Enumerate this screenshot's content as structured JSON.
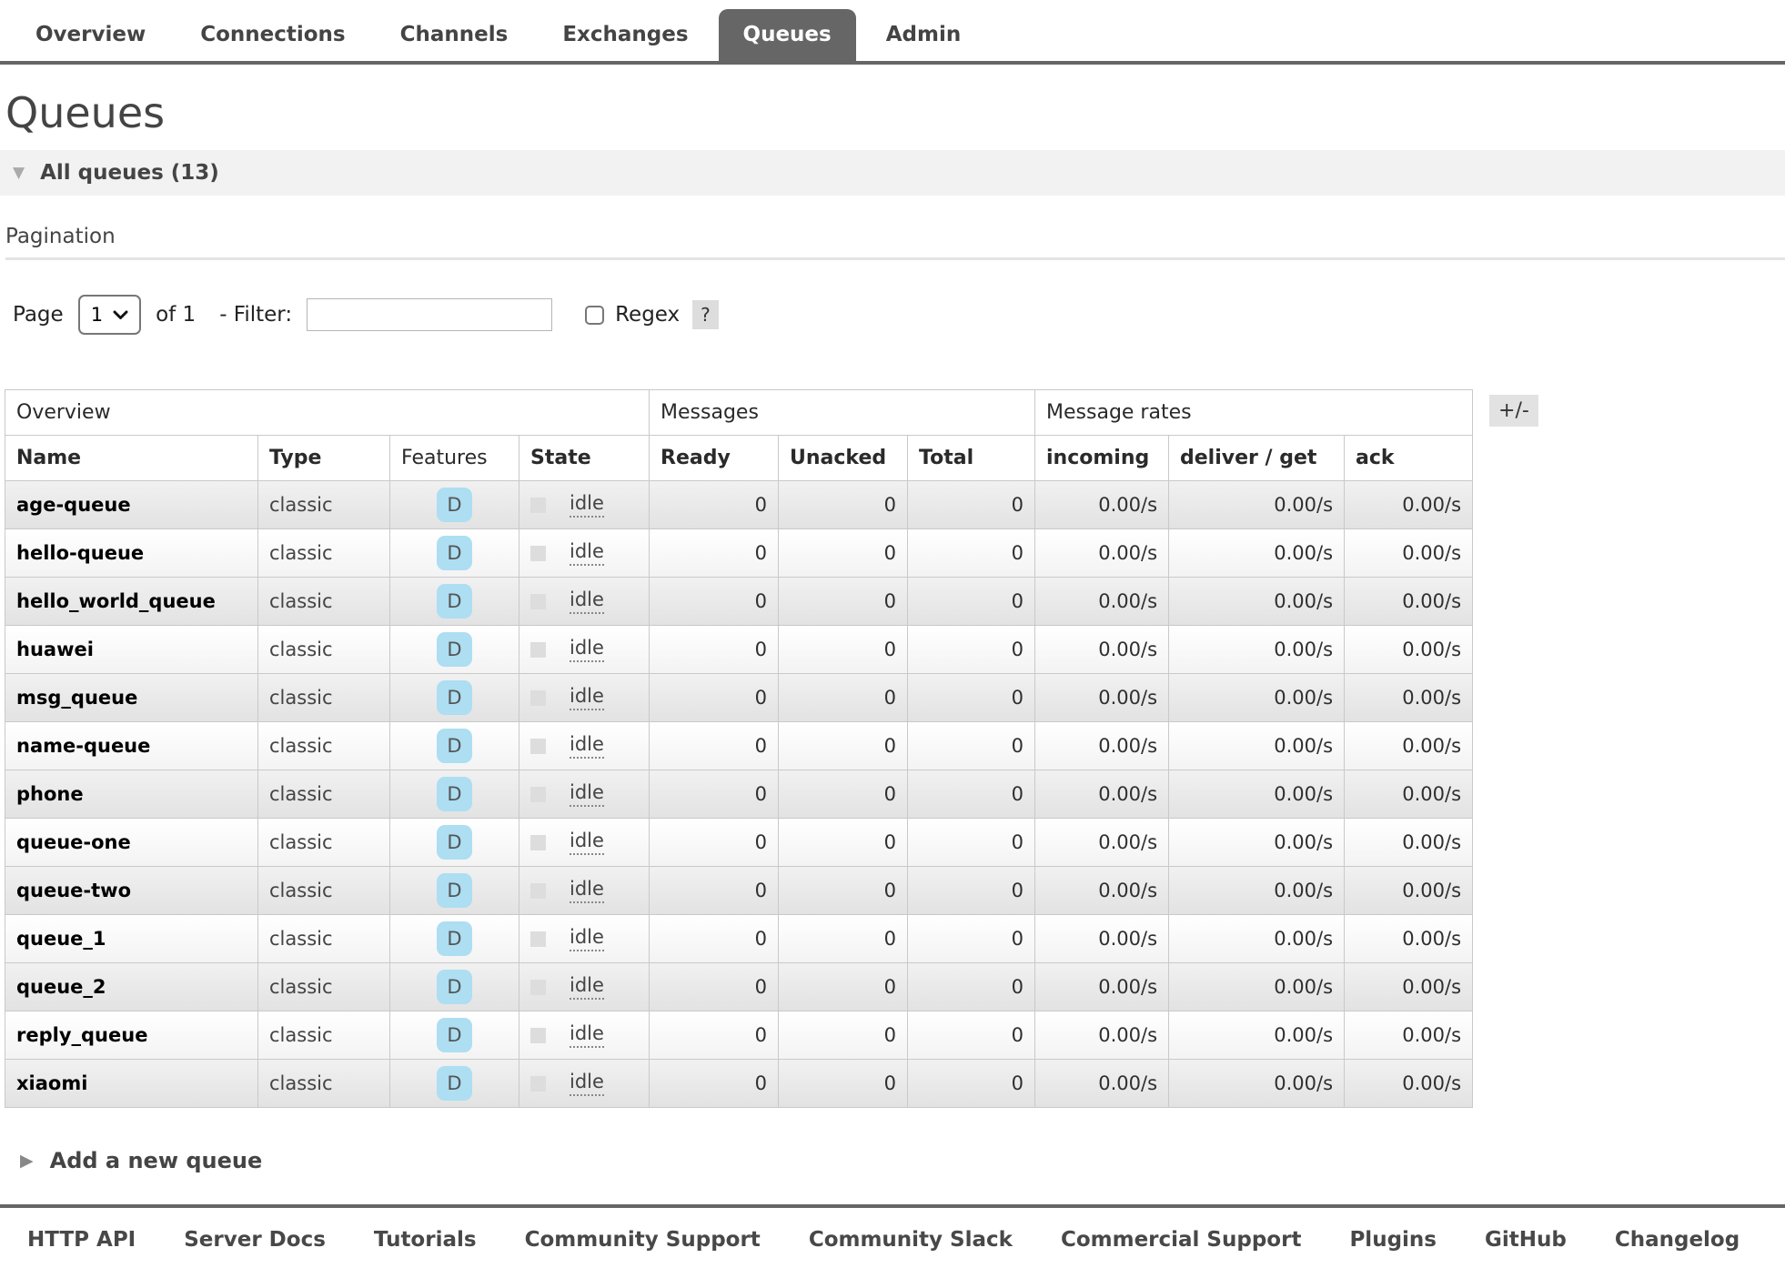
{
  "colors": {
    "tab_selected_bg": "#666666",
    "nav_border": "#666666",
    "feature_badge_bg": "#addef2",
    "idle_square": "#dddddd",
    "section_bar_bg": "#f2f2f2",
    "help_badge_bg": "#dddddd"
  },
  "nav": {
    "tabs": [
      {
        "label": "Overview",
        "selected": false
      },
      {
        "label": "Connections",
        "selected": false
      },
      {
        "label": "Channels",
        "selected": false
      },
      {
        "label": "Exchanges",
        "selected": false
      },
      {
        "label": "Queues",
        "selected": true
      },
      {
        "label": "Admin",
        "selected": false
      }
    ]
  },
  "page": {
    "title": "Queues",
    "section": {
      "icon": "▼",
      "label": "All queues (13)"
    },
    "pagination_heading": "Pagination"
  },
  "controls": {
    "page_label": "Page",
    "page_value": "1",
    "of_label": "of 1",
    "filter_label": "- Filter:",
    "filter_value": "",
    "regex_checked": false,
    "regex_label": "Regex",
    "help_label": "?"
  },
  "table": {
    "toggle_label": "+/-",
    "groups": [
      {
        "label": "Overview",
        "span": 4
      },
      {
        "label": "Messages",
        "span": 3
      },
      {
        "label": "Message rates",
        "span": 3
      }
    ],
    "columns": [
      {
        "label": "Name",
        "sortable": true
      },
      {
        "label": "Type",
        "sortable": true
      },
      {
        "label": "Features",
        "sortable": false
      },
      {
        "label": "State",
        "sortable": true
      },
      {
        "label": "Ready",
        "sortable": true
      },
      {
        "label": "Unacked",
        "sortable": true
      },
      {
        "label": "Total",
        "sortable": true
      },
      {
        "label": "incoming",
        "sortable": true
      },
      {
        "label": "deliver / get",
        "sortable": true
      },
      {
        "label": "ack",
        "sortable": true
      }
    ],
    "rows": [
      {
        "name": "age-queue",
        "type": "classic",
        "features": "D",
        "state": "idle",
        "ready": "0",
        "unacked": "0",
        "total": "0",
        "incoming": "0.00/s",
        "deliver_get": "0.00/s",
        "ack": "0.00/s"
      },
      {
        "name": "hello-queue",
        "type": "classic",
        "features": "D",
        "state": "idle",
        "ready": "0",
        "unacked": "0",
        "total": "0",
        "incoming": "0.00/s",
        "deliver_get": "0.00/s",
        "ack": "0.00/s"
      },
      {
        "name": "hello_world_queue",
        "type": "classic",
        "features": "D",
        "state": "idle",
        "ready": "0",
        "unacked": "0",
        "total": "0",
        "incoming": "0.00/s",
        "deliver_get": "0.00/s",
        "ack": "0.00/s"
      },
      {
        "name": "huawei",
        "type": "classic",
        "features": "D",
        "state": "idle",
        "ready": "0",
        "unacked": "0",
        "total": "0",
        "incoming": "0.00/s",
        "deliver_get": "0.00/s",
        "ack": "0.00/s"
      },
      {
        "name": "msg_queue",
        "type": "classic",
        "features": "D",
        "state": "idle",
        "ready": "0",
        "unacked": "0",
        "total": "0",
        "incoming": "0.00/s",
        "deliver_get": "0.00/s",
        "ack": "0.00/s"
      },
      {
        "name": "name-queue",
        "type": "classic",
        "features": "D",
        "state": "idle",
        "ready": "0",
        "unacked": "0",
        "total": "0",
        "incoming": "0.00/s",
        "deliver_get": "0.00/s",
        "ack": "0.00/s"
      },
      {
        "name": "phone",
        "type": "classic",
        "features": "D",
        "state": "idle",
        "ready": "0",
        "unacked": "0",
        "total": "0",
        "incoming": "0.00/s",
        "deliver_get": "0.00/s",
        "ack": "0.00/s"
      },
      {
        "name": "queue-one",
        "type": "classic",
        "features": "D",
        "state": "idle",
        "ready": "0",
        "unacked": "0",
        "total": "0",
        "incoming": "0.00/s",
        "deliver_get": "0.00/s",
        "ack": "0.00/s"
      },
      {
        "name": "queue-two",
        "type": "classic",
        "features": "D",
        "state": "idle",
        "ready": "0",
        "unacked": "0",
        "total": "0",
        "incoming": "0.00/s",
        "deliver_get": "0.00/s",
        "ack": "0.00/s"
      },
      {
        "name": "queue_1",
        "type": "classic",
        "features": "D",
        "state": "idle",
        "ready": "0",
        "unacked": "0",
        "total": "0",
        "incoming": "0.00/s",
        "deliver_get": "0.00/s",
        "ack": "0.00/s"
      },
      {
        "name": "queue_2",
        "type": "classic",
        "features": "D",
        "state": "idle",
        "ready": "0",
        "unacked": "0",
        "total": "0",
        "incoming": "0.00/s",
        "deliver_get": "0.00/s",
        "ack": "0.00/s"
      },
      {
        "name": "reply_queue",
        "type": "classic",
        "features": "D",
        "state": "idle",
        "ready": "0",
        "unacked": "0",
        "total": "0",
        "incoming": "0.00/s",
        "deliver_get": "0.00/s",
        "ack": "0.00/s"
      },
      {
        "name": "xiaomi",
        "type": "classic",
        "features": "D",
        "state": "idle",
        "ready": "0",
        "unacked": "0",
        "total": "0",
        "incoming": "0.00/s",
        "deliver_get": "0.00/s",
        "ack": "0.00/s"
      }
    ]
  },
  "add_queue": {
    "icon": "▶",
    "label": "Add a new queue"
  },
  "footer": {
    "links": [
      "HTTP API",
      "Server Docs",
      "Tutorials",
      "Community Support",
      "Community Slack",
      "Commercial Support",
      "Plugins",
      "GitHub",
      "Changelog"
    ]
  }
}
